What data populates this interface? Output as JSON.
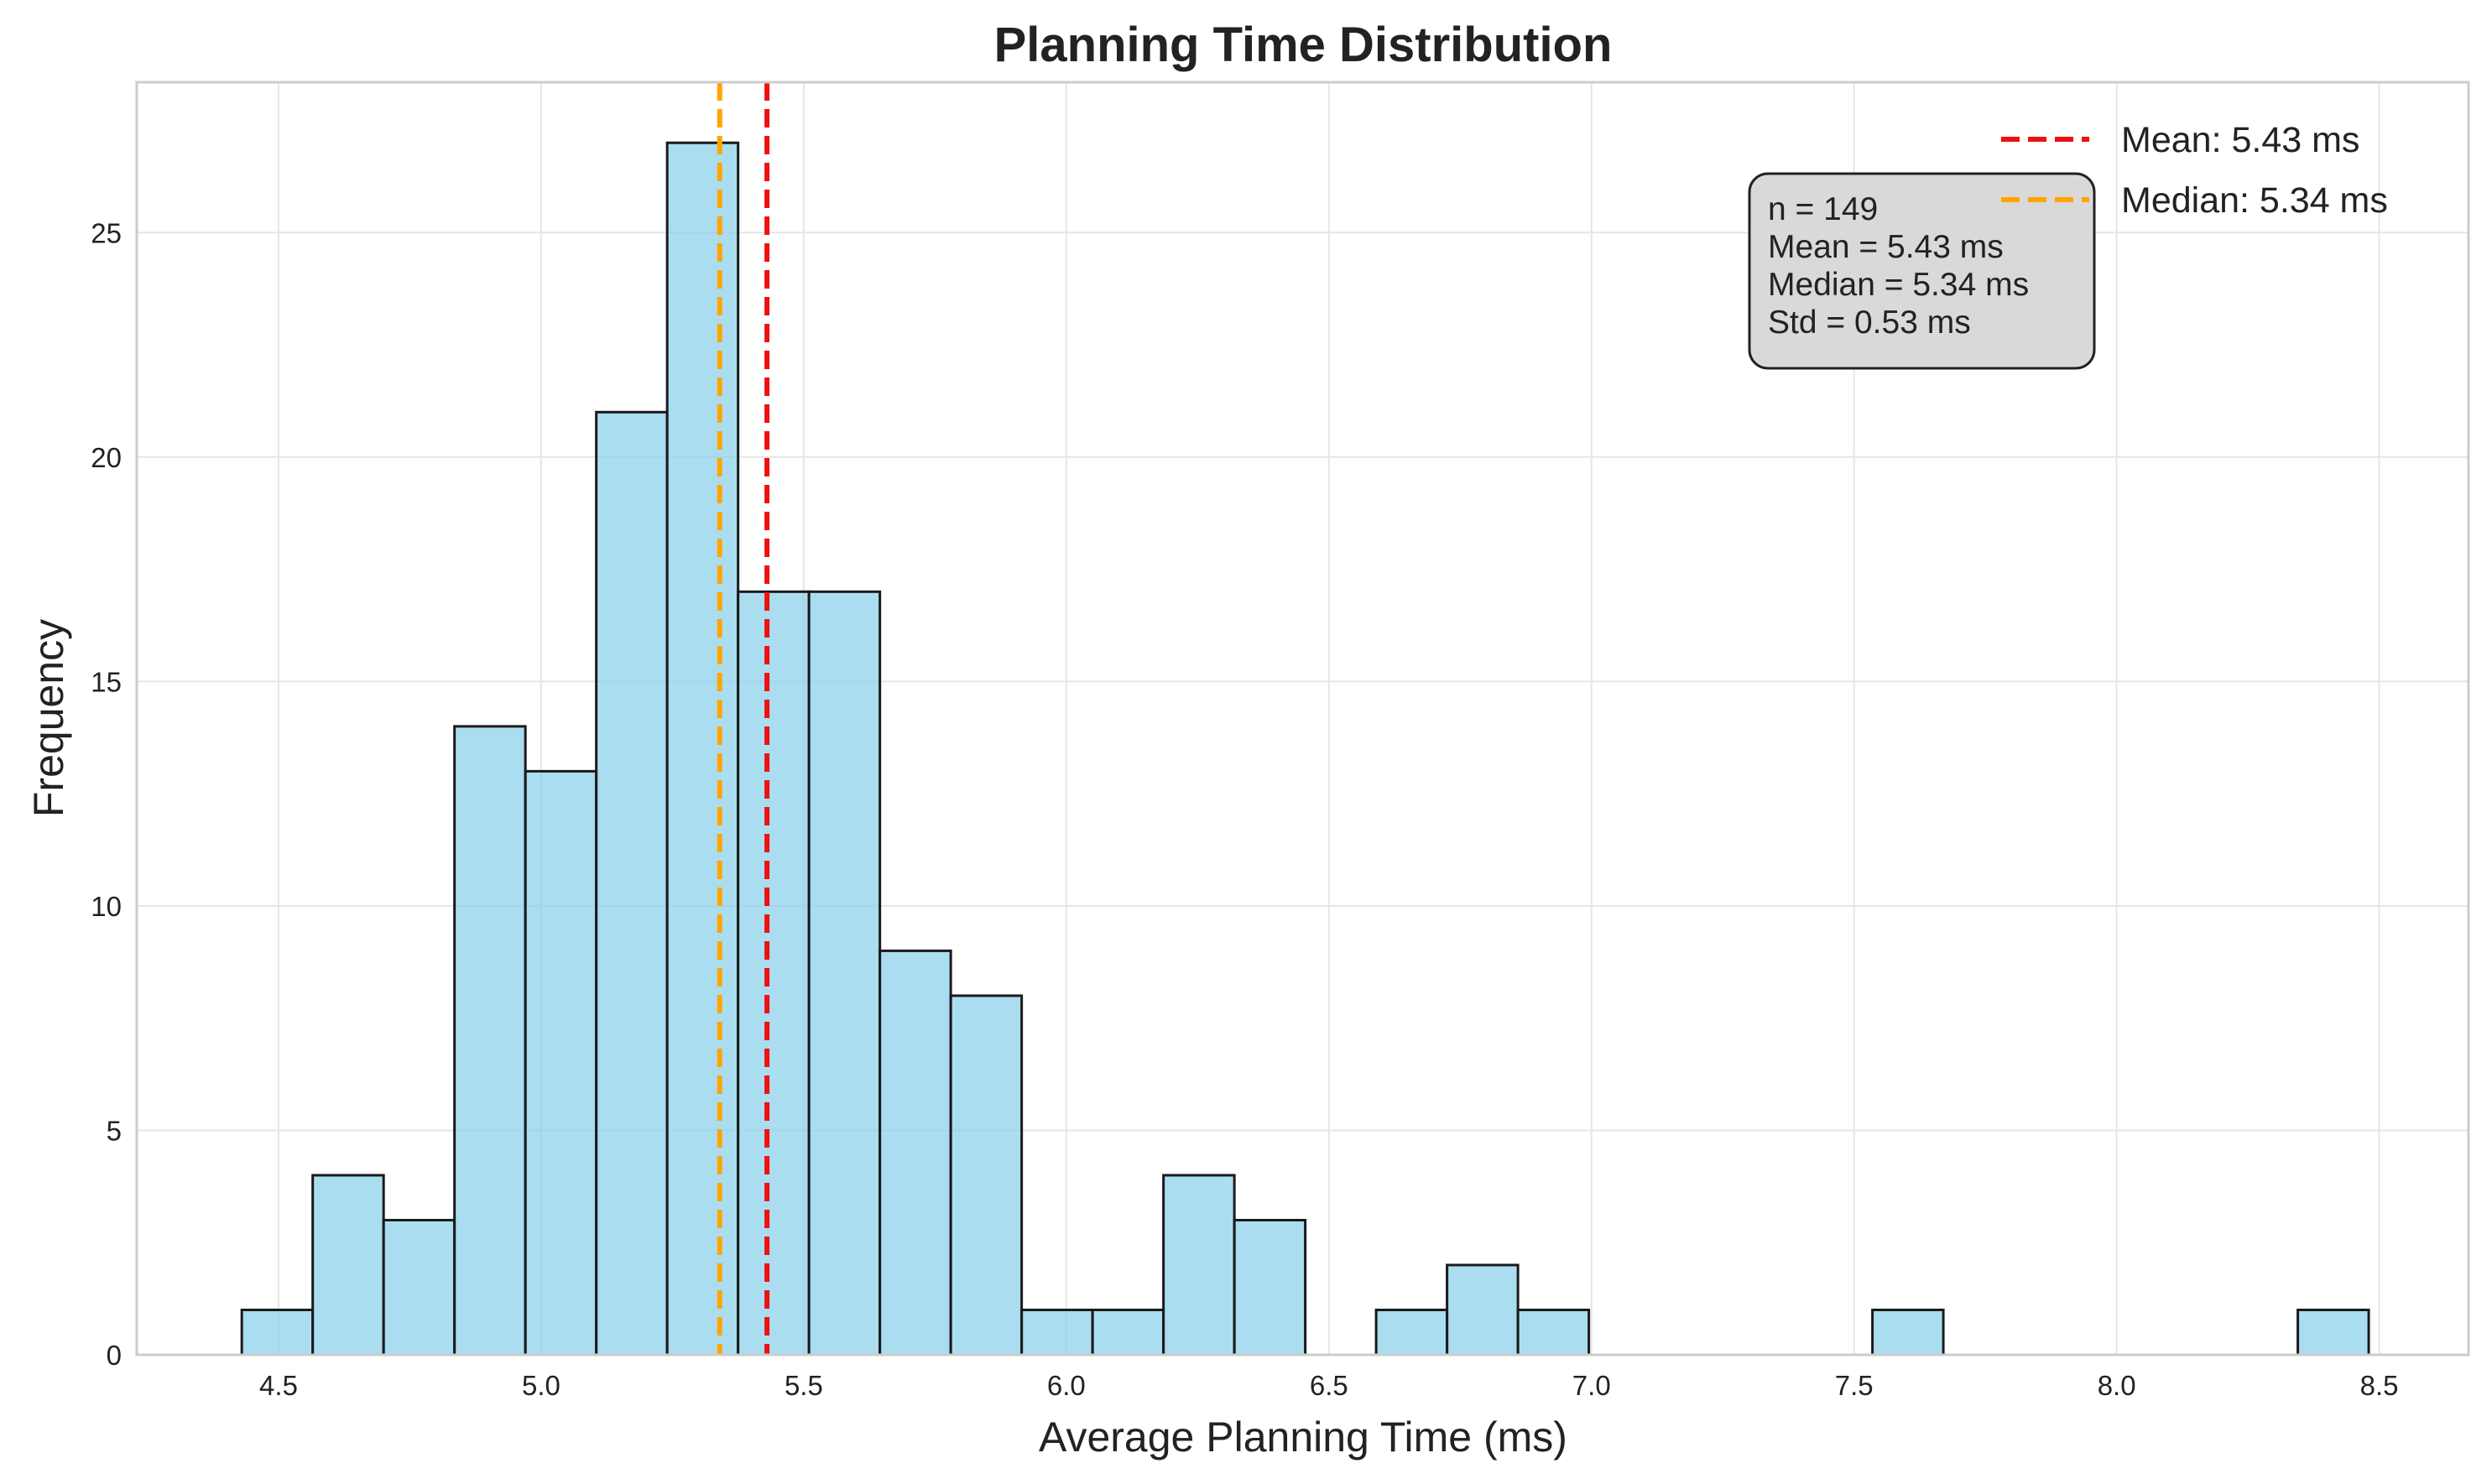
{
  "chart_data": {
    "type": "bar",
    "subtype": "histogram",
    "title": "Planning Time Distribution",
    "xlabel": "Average Planning Time (ms)",
    "ylabel": "Frequency",
    "xlim": [
      4.23,
      8.67
    ],
    "ylim": [
      0,
      28.35
    ],
    "xticks": [
      4.5,
      5.0,
      5.5,
      6.0,
      6.5,
      7.0,
      7.5,
      8.0,
      8.5
    ],
    "xtick_labels": [
      "4.5",
      "5.0",
      "5.5",
      "6.0",
      "6.5",
      "7.0",
      "7.5",
      "8.0",
      "8.5"
    ],
    "yticks": [
      0,
      5,
      10,
      15,
      20,
      25
    ],
    "ytick_labels": [
      "0",
      "5",
      "10",
      "15",
      "20",
      "25"
    ],
    "grid": true,
    "bins": {
      "start": 4.43,
      "width": 0.135,
      "counts": [
        1,
        4,
        3,
        14,
        13,
        21,
        27,
        17,
        17,
        9,
        8,
        1,
        1,
        4,
        3,
        0,
        1,
        2,
        1,
        0,
        0,
        0,
        0,
        1,
        0,
        0,
        0,
        0,
        0,
        1
      ]
    },
    "reference_lines": [
      {
        "label": "Mean: 5.43 ms",
        "x": 5.43,
        "color": "#ee1111",
        "style": "dashed"
      },
      {
        "label": "Median: 5.34 ms",
        "x": 5.34,
        "color": "#ffa500",
        "style": "dashed"
      }
    ],
    "legend_position": "top-right",
    "stats_box": {
      "lines": [
        "n = 149",
        "Mean = 5.43 ms",
        "Median = 5.34 ms",
        "Std = 0.53 ms"
      ],
      "position": "upper-right"
    },
    "colors": {
      "bar_fill": "#87ceeb",
      "bar_edge": "#1a1a1a",
      "grid": "#e6e6e6",
      "frame": "#cccccc",
      "stats_box_fill": "#d9d9d9"
    }
  }
}
